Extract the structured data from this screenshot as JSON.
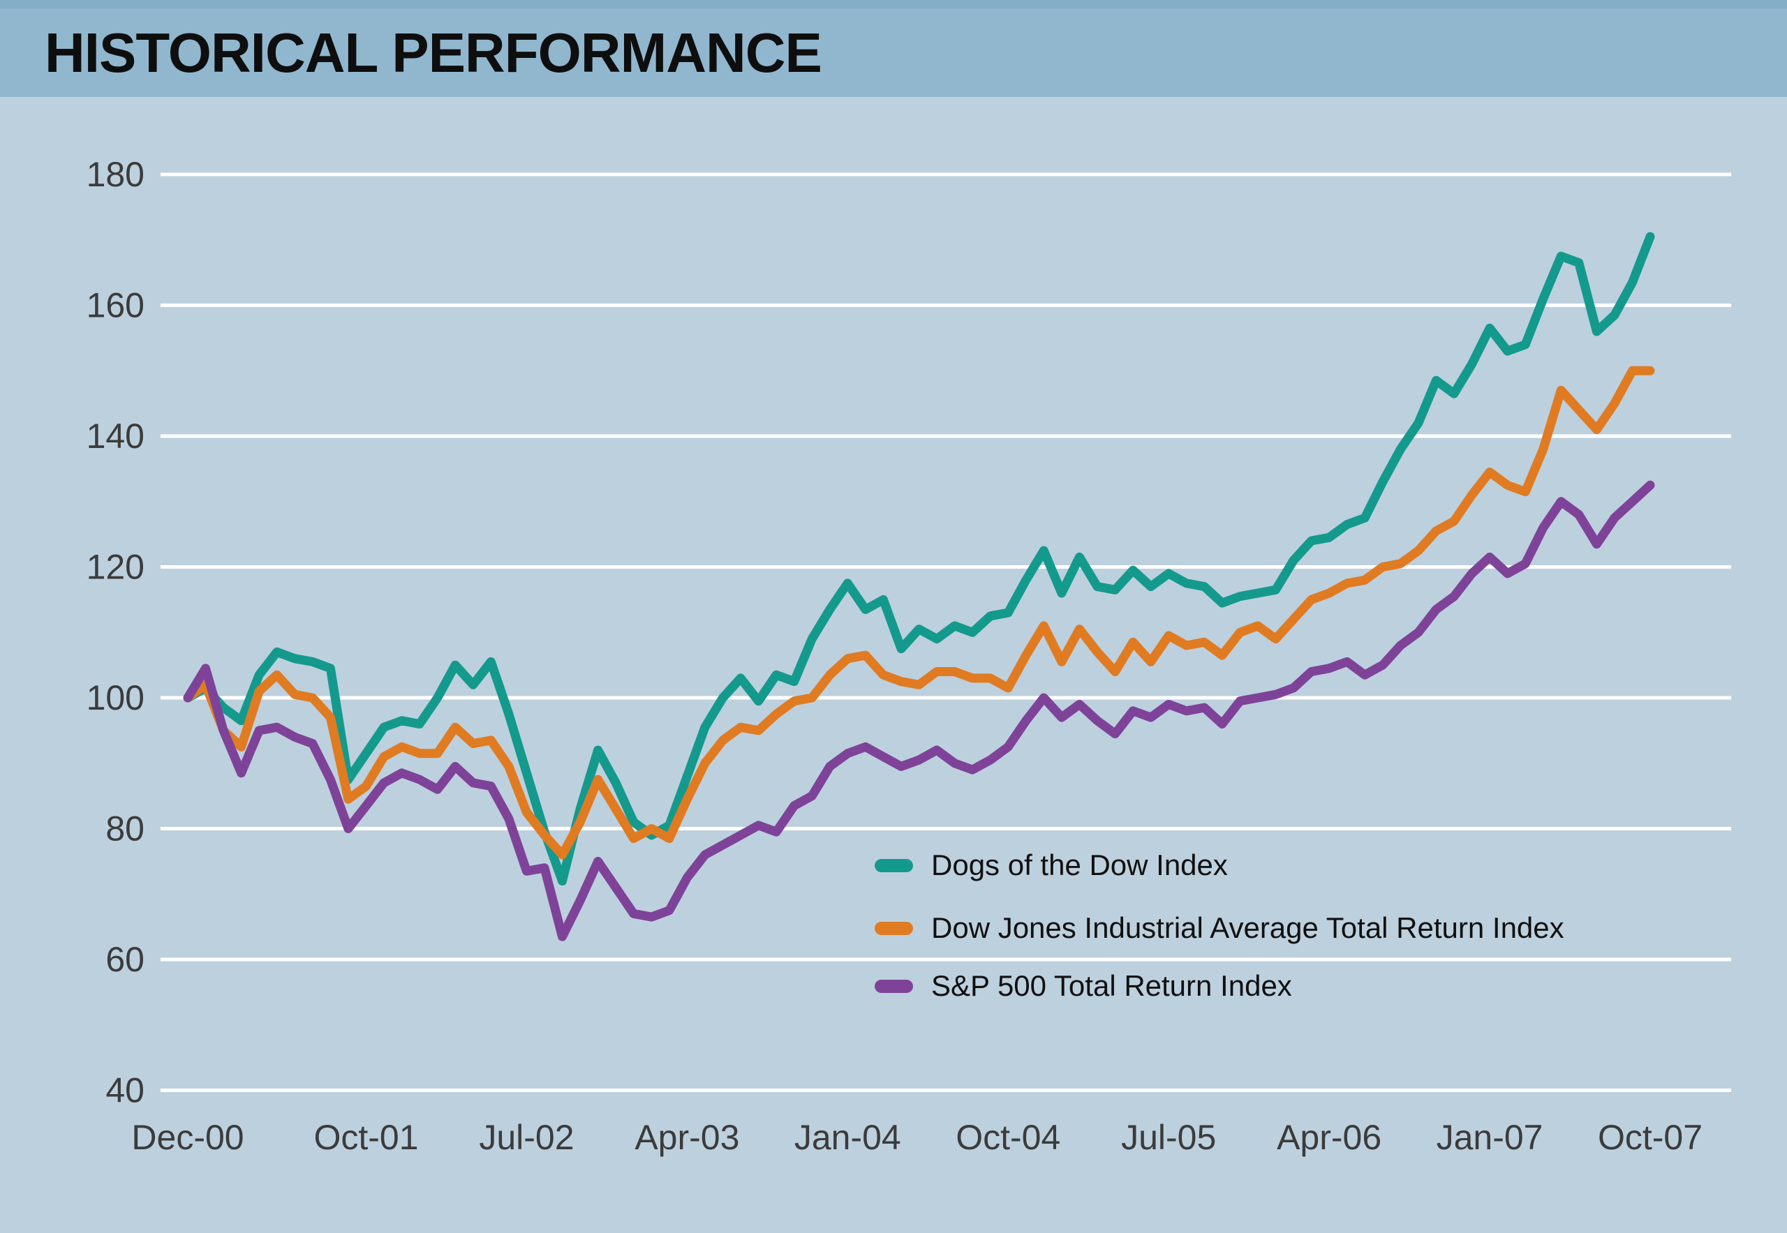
{
  "header": {
    "title": "HISTORICAL PERFORMANCE"
  },
  "colors": {
    "header_band": "#91b7cf",
    "header_band_top_strip": "#85adc7",
    "chart_background": "#bdd0de",
    "gridline": "#ffffff",
    "tick_text": "#3b3b3b",
    "title_text": "#0e0e0e"
  },
  "chart_data": {
    "type": "line",
    "title": "HISTORICAL PERFORMANCE",
    "xlabel": "",
    "ylabel": "",
    "frequency": "monthly",
    "x_range_labels": [
      "Dec-00",
      "Oct-07"
    ],
    "x_tick_labels": [
      "Dec‑00",
      "Oct‑01",
      "Jul‑02",
      "Apr‑03",
      "Jan‑04",
      "Oct‑04",
      "Jul‑05",
      "Apr‑06",
      "Jan‑07",
      "Oct‑07"
    ],
    "x_tick_month_index": [
      0,
      10,
      19,
      28,
      37,
      46,
      55,
      64,
      73,
      82
    ],
    "y_ticks": [
      40,
      60,
      80,
      100,
      120,
      140,
      160,
      180
    ],
    "ylim": [
      40,
      185
    ],
    "grid": "horizontal-white-lines",
    "legend_position": "inside-bottom-right",
    "series": [
      {
        "name": "Dogs of the Dow Index",
        "color": "#149a8c",
        "values": [
          100,
          101.5,
          98.5,
          96.5,
          103.5,
          107,
          106,
          105.5,
          104.5,
          87.5,
          91.5,
          95.5,
          96.5,
          96,
          100,
          105,
          102,
          105.5,
          97.5,
          88.5,
          79.5,
          72,
          83,
          92,
          87,
          81,
          79,
          80.5,
          88,
          95.5,
          100,
          103,
          99.5,
          103.5,
          102.5,
          109,
          113.5,
          117.5,
          113.5,
          115,
          107.5,
          110.5,
          109,
          111,
          110,
          112.5,
          113,
          118,
          122.5,
          116,
          121.5,
          117,
          116.5,
          119.5,
          117,
          119,
          117.5,
          117,
          114.5,
          115.5,
          116,
          116.5,
          121,
          124,
          124.5,
          126.5,
          127.5,
          133,
          138,
          142,
          148.5,
          146.5,
          151,
          156.5,
          153,
          154,
          161,
          167.5,
          166.5,
          156,
          158.5,
          163.5,
          170.5
        ]
      },
      {
        "name": "Dow Jones Industrial Average Total Return Index",
        "color": "#e07b22",
        "values": [
          100,
          102,
          95,
          92.5,
          101,
          103.5,
          100.5,
          100,
          97,
          84.5,
          86.5,
          91,
          92.5,
          91.5,
          91.5,
          95.5,
          93,
          93.5,
          89.5,
          82.5,
          79,
          76,
          81,
          87.5,
          83,
          78.5,
          80,
          78.5,
          84.5,
          90,
          93.5,
          95.5,
          95,
          97.5,
          99.5,
          100,
          103.5,
          106,
          106.5,
          103.5,
          102.5,
          102,
          104,
          104,
          103,
          103,
          101.5,
          106.5,
          111,
          105.5,
          110.5,
          107,
          104,
          108.5,
          105.5,
          109.5,
          108,
          108.5,
          106.5,
          110,
          111,
          109,
          112,
          115,
          116,
          117.5,
          118,
          120,
          120.5,
          122.5,
          125.5,
          127,
          131,
          134.5,
          132.5,
          131.5,
          138,
          147,
          144,
          141,
          145,
          150,
          150
        ]
      },
      {
        "name": "S&P 500 Total Return Index",
        "color": "#7e4398",
        "values": [
          100,
          104.5,
          95,
          88.5,
          95,
          95.5,
          94,
          93,
          87.5,
          80,
          83.5,
          87,
          88.5,
          87.5,
          86,
          89.5,
          87,
          86.5,
          81.5,
          73.5,
          74,
          63.5,
          69,
          75,
          71,
          67,
          66.5,
          67.5,
          72.5,
          76,
          77.5,
          79,
          80.5,
          79.5,
          83.5,
          85,
          89.5,
          91.5,
          92.5,
          91,
          89.5,
          90.5,
          92,
          90,
          89,
          90.5,
          92.5,
          96.5,
          100,
          97,
          99,
          96.5,
          94.5,
          98,
          97,
          99,
          98,
          98.5,
          96,
          99.5,
          100,
          100.5,
          101.5,
          104,
          104.5,
          105.5,
          103.5,
          105,
          108,
          110,
          113.5,
          115.5,
          119,
          121.5,
          119,
          120.5,
          126,
          130,
          128,
          123.5,
          127.5,
          130,
          132.5
        ]
      }
    ]
  }
}
